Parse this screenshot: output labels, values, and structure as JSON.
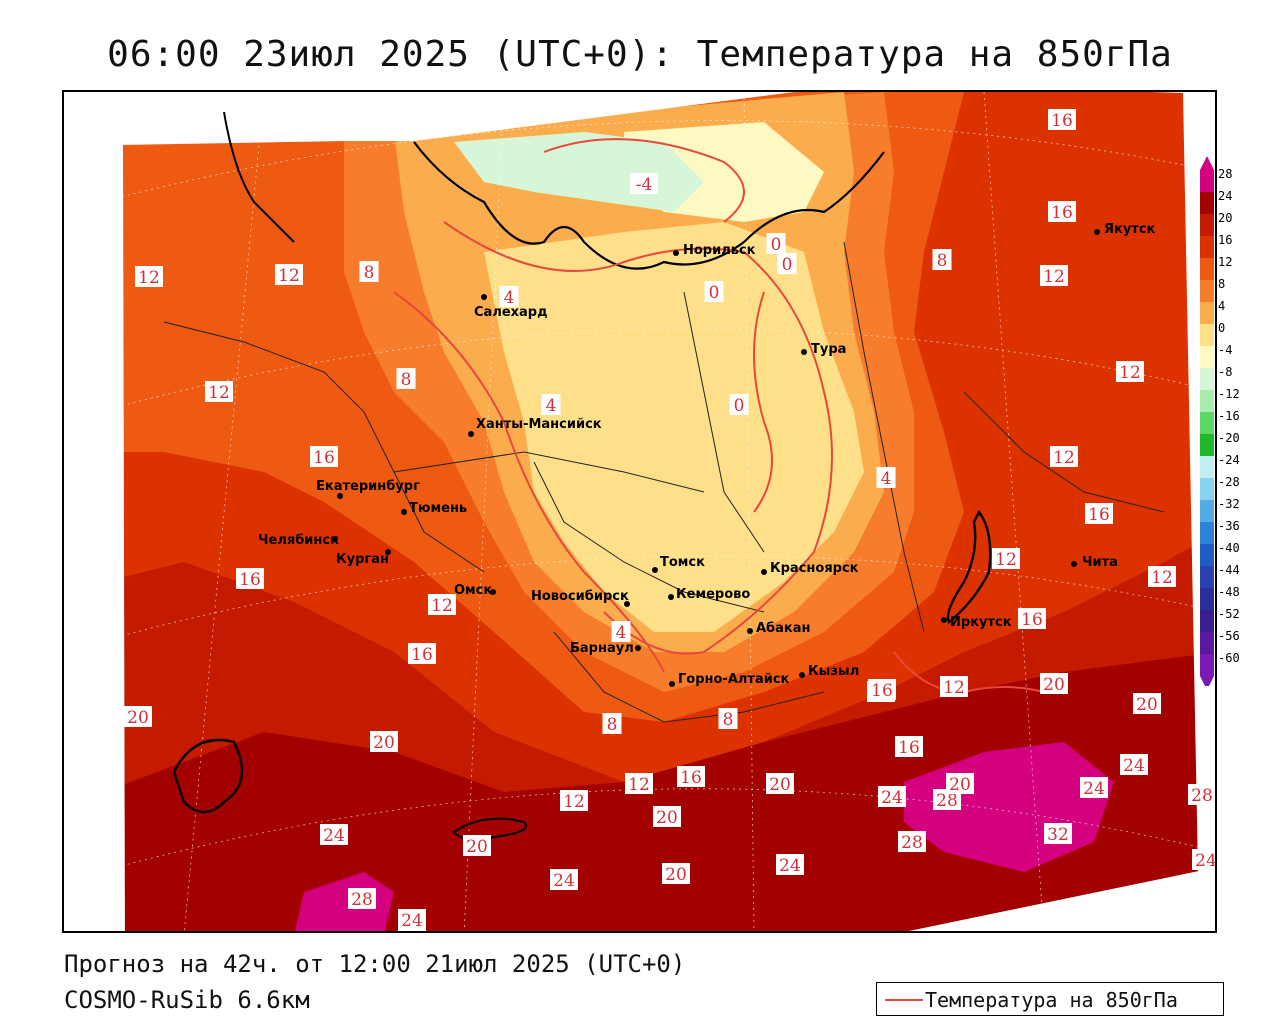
{
  "title": "06:00 23июл 2025 (UTC+0): Температура на 850гПа",
  "footer": {
    "forecast": "Прогноз на 42ч. от 12:00 21июл 2025 (UTC+0)",
    "model": "COSMO-RuSib 6.6км"
  },
  "legend": {
    "label": "Температура на 850гПа",
    "line_color": "#e8483c"
  },
  "colorbar": {
    "labels": [
      "28",
      "24",
      "20",
      "16",
      "12",
      "8",
      "4",
      "0",
      "-4",
      "-8",
      "-12",
      "-16",
      "-20",
      "-24",
      "-28",
      "-32",
      "-36",
      "-40",
      "-44",
      "-48",
      "-52",
      "-56",
      "-60"
    ],
    "colors": [
      "#d4007f",
      "#a30000",
      "#c41a00",
      "#dc3200",
      "#ee5a12",
      "#f77d2c",
      "#fbad4e",
      "#fde089",
      "#fef8c2",
      "#d7f5d7",
      "#a7ecaa",
      "#5fd765",
      "#20b82a",
      "#c2eef2",
      "#86d4f2",
      "#55aae8",
      "#2e82d8",
      "#1f5cc4",
      "#2a42b0",
      "#2a2e98",
      "#3a1e90",
      "#5a1aa0",
      "#7a1ab4"
    ]
  },
  "cities": [
    {
      "name": "Якутск"
    },
    {
      "name": "Норильск"
    },
    {
      "name": "Салехард"
    },
    {
      "name": "Тура"
    },
    {
      "name": "Ханты-Мансийск"
    },
    {
      "name": "Екатеринбург"
    },
    {
      "name": "Тюмень"
    },
    {
      "name": "Челябинск"
    },
    {
      "name": "Курган"
    },
    {
      "name": "Омск"
    },
    {
      "name": "Новосибирск"
    },
    {
      "name": "Томск"
    },
    {
      "name": "Кемерово"
    },
    {
      "name": "Красноярск"
    },
    {
      "name": "Абакан"
    },
    {
      "name": "Барнаул"
    },
    {
      "name": "Горно-Алтайск"
    },
    {
      "name": "Кызыл"
    },
    {
      "name": "Иркутск"
    },
    {
      "name": "Чита"
    }
  ],
  "isotherm_labels": [
    "16",
    "16",
    "12",
    "12",
    "8",
    "-4",
    "0",
    "0",
    "0",
    "4",
    "8",
    "12",
    "12",
    "8",
    "12",
    "4",
    "0",
    "12",
    "16",
    "16",
    "12",
    "12",
    "12",
    "16",
    "4",
    "4",
    "16",
    "16",
    "12",
    "20",
    "16",
    "8",
    "8",
    "12",
    "20",
    "12",
    "20",
    "20",
    "16",
    "12",
    "16",
    "20",
    "24",
    "28",
    "20",
    "24",
    "24",
    "28",
    "24",
    "20",
    "20",
    "24",
    "24",
    "28",
    "24",
    "32",
    "24",
    "28",
    "20",
    "24"
  ]
}
